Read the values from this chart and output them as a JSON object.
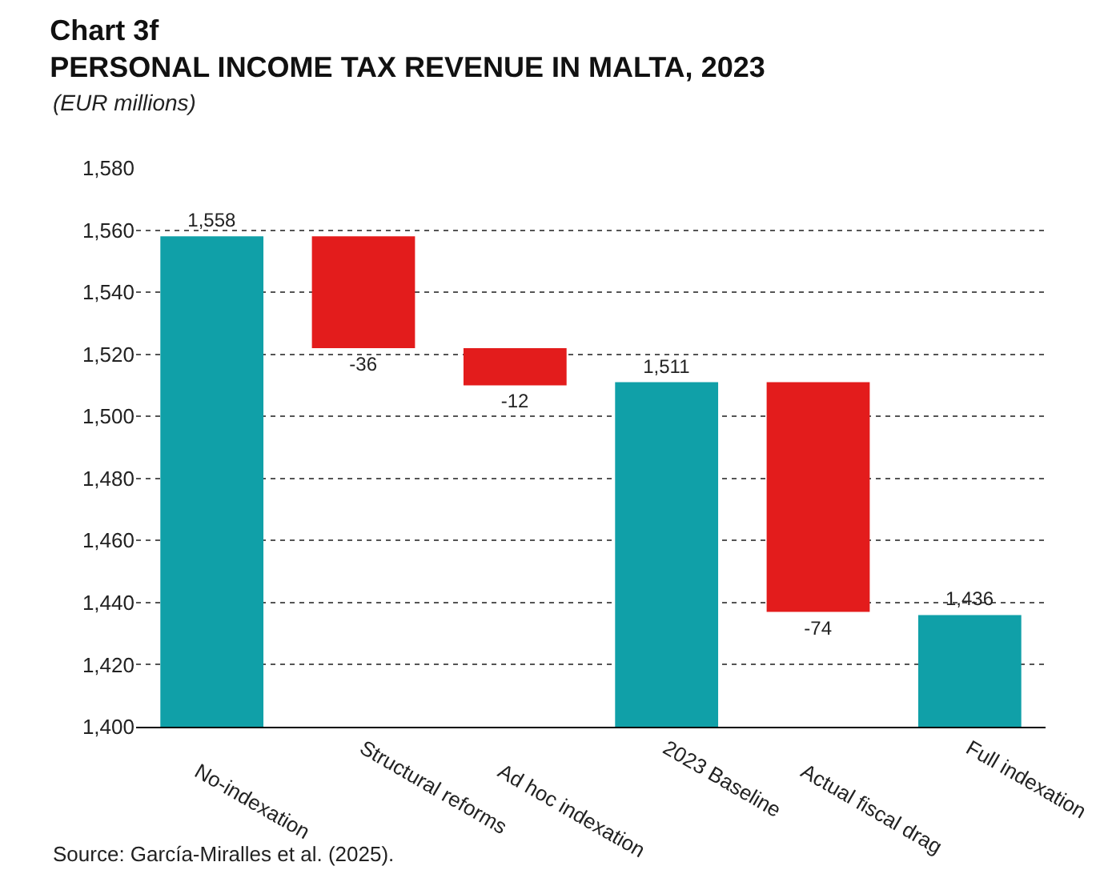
{
  "chart_data": {
    "type": "bar",
    "title": "Chart 3f",
    "subtitle": "PERSONAL INCOME TAX REVENUE IN MALTA, 2023",
    "ylabel": "(EUR millions)",
    "categories": [
      "No-indexation",
      "Structural reforms",
      "Ad hoc indexation",
      "2023 Baseline",
      "Actual fiscal drag",
      "Full indexation"
    ],
    "values": [
      1558,
      -36,
      -12,
      1511,
      -74,
      1436
    ],
    "base": [
      null,
      1558,
      1522,
      null,
      1511,
      null
    ],
    "colors": [
      "#10a0a8",
      "#e31c1c",
      "#e31c1c",
      "#10a0a8",
      "#e31c1c",
      "#10a0a8"
    ],
    "value_labels": [
      "1,558",
      "-36",
      "-12",
      "1,511",
      "-74",
      "1,436"
    ],
    "ylim": [
      1400,
      1580
    ],
    "yticks": [
      {
        "value": 1400,
        "label": "1,400"
      },
      {
        "value": 1420,
        "label": "1,420"
      },
      {
        "value": 1440,
        "label": "1,440"
      },
      {
        "value": 1460,
        "label": "1,460"
      },
      {
        "value": 1480,
        "label": "1,480"
      },
      {
        "value": 1500,
        "label": "1,500"
      },
      {
        "value": 1520,
        "label": "1,520"
      },
      {
        "value": 1540,
        "label": "1,540"
      },
      {
        "value": 1560,
        "label": "1,560"
      },
      {
        "value": 1580,
        "label": "1,580"
      }
    ],
    "grid": "y",
    "legend": false,
    "annotations": [
      "Source: García-Miralles et al. (2025)."
    ]
  }
}
